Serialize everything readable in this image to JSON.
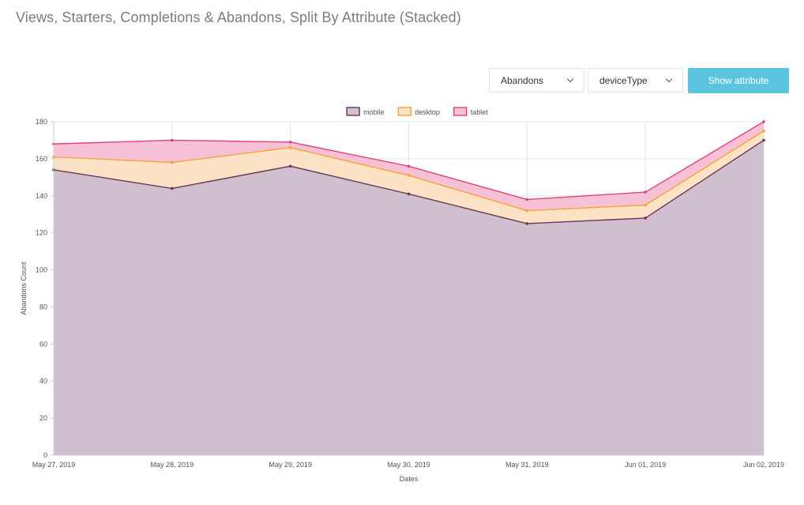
{
  "page": {
    "title": "Views, Starters, Completions & Abandons, Split By Attribute (Stacked)"
  },
  "controls": {
    "metric_select": "Abandons",
    "attribute_select": "deviceType",
    "show_button": "Show attribute"
  },
  "colors": {
    "mobile_line": "#6b3657",
    "mobile_fill": "#d0bfcf",
    "desktop_line": "#f5a33a",
    "desktop_fill": "#fde3c5",
    "tablet_line": "#e2437a",
    "tablet_fill": "#f6c1d6",
    "grid": "#e6e6e6"
  },
  "chart_data": {
    "type": "area",
    "stacked": true,
    "xlabel": "Dates",
    "ylabel": "Abandons Count",
    "ylim": [
      0,
      180
    ],
    "yticks": [
      0,
      20,
      40,
      60,
      80,
      100,
      120,
      140,
      160,
      180
    ],
    "grid": true,
    "legend_position": "top",
    "categories": [
      "May 27, 2019",
      "May 28, 2019",
      "May 29, 2019",
      "May 30, 2019",
      "May 31, 2019",
      "Jun 01, 2019",
      "Jun 02, 2019"
    ],
    "series": [
      {
        "name": "mobile",
        "values": [
          154,
          144,
          156,
          141,
          125,
          128,
          170
        ]
      },
      {
        "name": "desktop",
        "values": [
          7,
          14,
          10,
          10,
          7,
          7,
          5
        ]
      },
      {
        "name": "tablet",
        "values": [
          7,
          12,
          3,
          5,
          6,
          7,
          5
        ]
      }
    ]
  }
}
